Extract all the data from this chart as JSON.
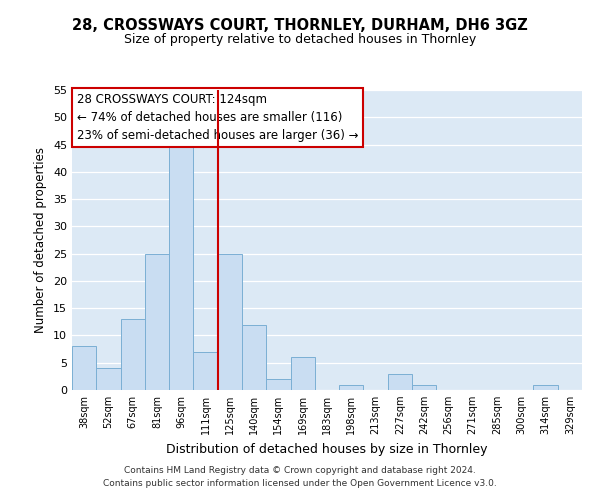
{
  "title_line1": "28, CROSSWAYS COURT, THORNLEY, DURHAM, DH6 3GZ",
  "title_line2": "Size of property relative to detached houses in Thornley",
  "xlabel": "Distribution of detached houses by size in Thornley",
  "ylabel": "Number of detached properties",
  "bar_labels": [
    "38sqm",
    "52sqm",
    "67sqm",
    "81sqm",
    "96sqm",
    "111sqm",
    "125sqm",
    "140sqm",
    "154sqm",
    "169sqm",
    "183sqm",
    "198sqm",
    "213sqm",
    "227sqm",
    "242sqm",
    "256sqm",
    "271sqm",
    "285sqm",
    "300sqm",
    "314sqm",
    "329sqm"
  ],
  "bar_values": [
    8,
    4,
    13,
    25,
    46,
    7,
    25,
    12,
    2,
    6,
    0,
    1,
    0,
    3,
    1,
    0,
    0,
    0,
    0,
    1,
    0
  ],
  "bar_color": "#c9ddf2",
  "bar_edge_color": "#7bafd4",
  "vline_color": "#cc0000",
  "annotation_title": "28 CROSSWAYS COURT: 124sqm",
  "annotation_line2": "← 74% of detached houses are smaller (116)",
  "annotation_line3": "23% of semi-detached houses are larger (36) →",
  "ylim": [
    0,
    55
  ],
  "yticks": [
    0,
    5,
    10,
    15,
    20,
    25,
    30,
    35,
    40,
    45,
    50,
    55
  ],
  "background_color": "#ffffff",
  "plot_bg_color": "#dce9f5",
  "grid_color": "#ffffff",
  "footer_line1": "Contains HM Land Registry data © Crown copyright and database right 2024.",
  "footer_line2": "Contains public sector information licensed under the Open Government Licence v3.0."
}
